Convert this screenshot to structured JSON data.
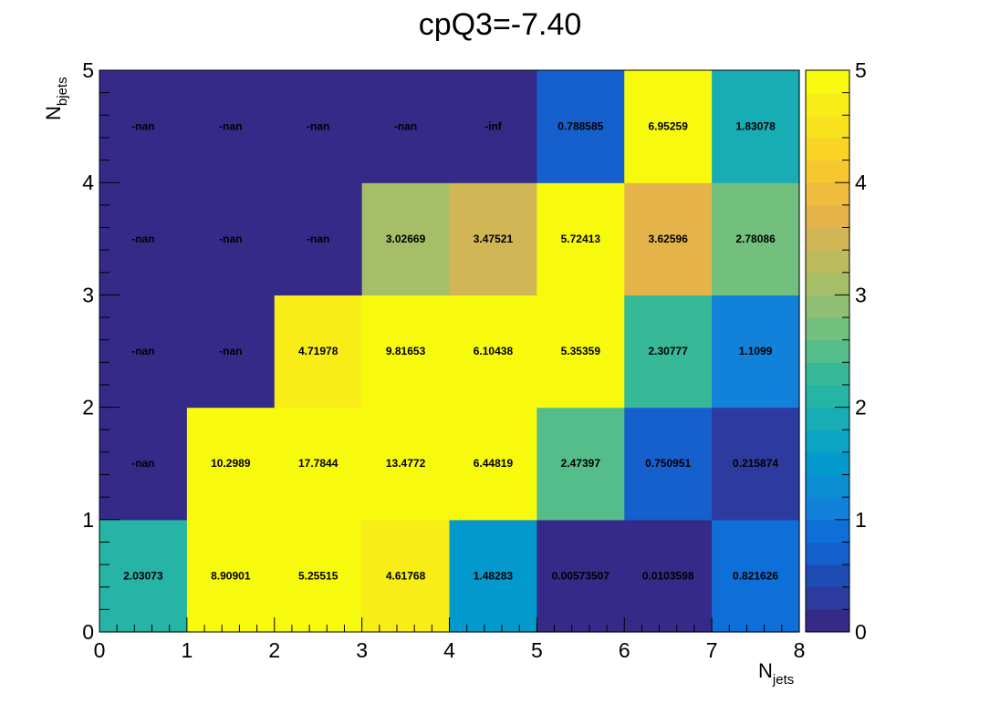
{
  "chart_data": {
    "type": "heatmap",
    "title": "cpQ3=-7.40",
    "xlabel": {
      "main": "N",
      "sub": "jets"
    },
    "ylabel": {
      "main": "N",
      "sub": "bjets"
    },
    "xlim": [
      0,
      8
    ],
    "ylim": [
      0,
      5
    ],
    "zlim": [
      0,
      5
    ],
    "x_ticks": [
      "0",
      "1",
      "2",
      "3",
      "4",
      "5",
      "6",
      "7",
      "8"
    ],
    "y_ticks": [
      "0",
      "1",
      "2",
      "3",
      "4",
      "5"
    ],
    "z_ticks": [
      "0",
      "1",
      "2",
      "3",
      "4",
      "5"
    ],
    "palette": [
      "#352a87",
      "#2d3b9f",
      "#1f4bb5",
      "#1560cc",
      "#0f6fd9",
      "#1181d9",
      "#0b8dd4",
      "#0399cc",
      "#0ba4c4",
      "#18acb5",
      "#25b4a6",
      "#37b998",
      "#55bd8a",
      "#72bf7e",
      "#8ebf72",
      "#a6be67",
      "#bcbb5e",
      "#d1b655",
      "#e4b44a",
      "#f1bb3e",
      "#f7c730",
      "#f9d425",
      "#f8e11d",
      "#f8ed17",
      "#f8fa0d"
    ],
    "rows": [
      {
        "y": "0-1",
        "values": [
          2.03073,
          8.90901,
          5.25515,
          4.61768,
          1.48283,
          0.00573507,
          0.0103598,
          0.821626
        ],
        "labels": [
          "2.03073",
          "8.90901",
          "5.25515",
          "4.61768",
          "1.48283",
          "0.00573507",
          "0.0103598",
          "0.821626"
        ]
      },
      {
        "y": "1-2",
        "values": [
          null,
          10.2989,
          17.7844,
          13.4772,
          6.44819,
          2.47397,
          0.750951,
          0.215874
        ],
        "labels": [
          "-nan",
          "10.2989",
          "17.7844",
          "13.4772",
          "6.44819",
          "2.47397",
          "0.750951",
          "0.215874"
        ]
      },
      {
        "y": "2-3",
        "values": [
          null,
          null,
          4.71978,
          9.81653,
          6.10438,
          5.35359,
          2.30777,
          1.1099
        ],
        "labels": [
          "-nan",
          "-nan",
          "4.71978",
          "9.81653",
          "6.10438",
          "5.35359",
          "2.30777",
          "1.1099"
        ]
      },
      {
        "y": "3-4",
        "values": [
          null,
          null,
          null,
          3.02669,
          3.47521,
          5.72413,
          3.62596,
          2.78086
        ],
        "labels": [
          "-nan",
          "-nan",
          "-nan",
          "3.02669",
          "3.47521",
          "5.72413",
          "3.62596",
          "2.78086"
        ]
      },
      {
        "y": "4-5",
        "values": [
          null,
          null,
          null,
          null,
          null,
          0.788585,
          6.95259,
          1.83078
        ],
        "labels": [
          "-nan",
          "-nan",
          "-nan",
          "-nan",
          "-inf",
          "0.788585",
          "6.95259",
          "1.83078"
        ]
      }
    ]
  }
}
